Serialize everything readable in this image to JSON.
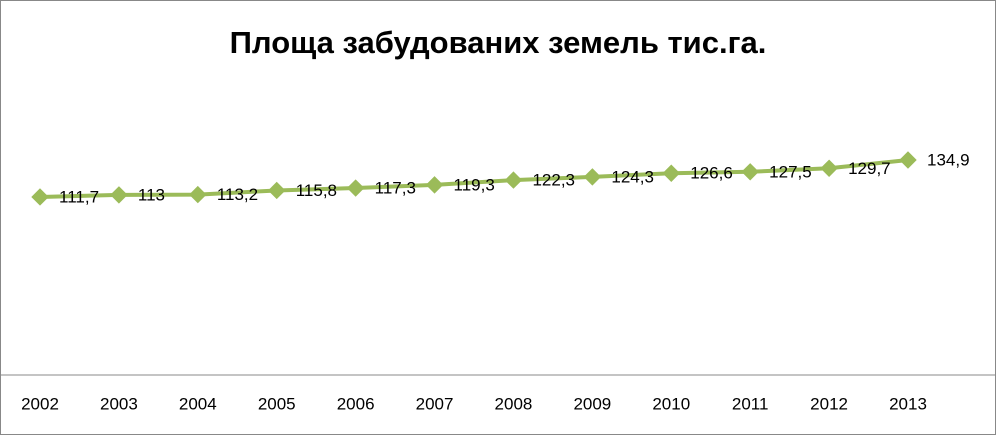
{
  "chart_data": {
    "type": "line",
    "title": "Площа забудованих земель тис.га.",
    "categories": [
      "2002",
      "2003",
      "2004",
      "2005",
      "2006",
      "2007",
      "2008",
      "2009",
      "2010",
      "2011",
      "2012",
      "2013"
    ],
    "values": [
      111.7,
      113,
      113.2,
      115.8,
      117.3,
      119.3,
      122.3,
      124.3,
      126.6,
      127.5,
      129.7,
      134.9
    ],
    "value_labels": [
      "111,7",
      "113",
      "113,2",
      "115,8",
      "117,3",
      "119,3",
      "122,3",
      "124,3",
      "126,6",
      "127,5",
      "129,7",
      "134,9"
    ],
    "color": "#9bbb59",
    "ylim": [
      0,
      160
    ]
  }
}
